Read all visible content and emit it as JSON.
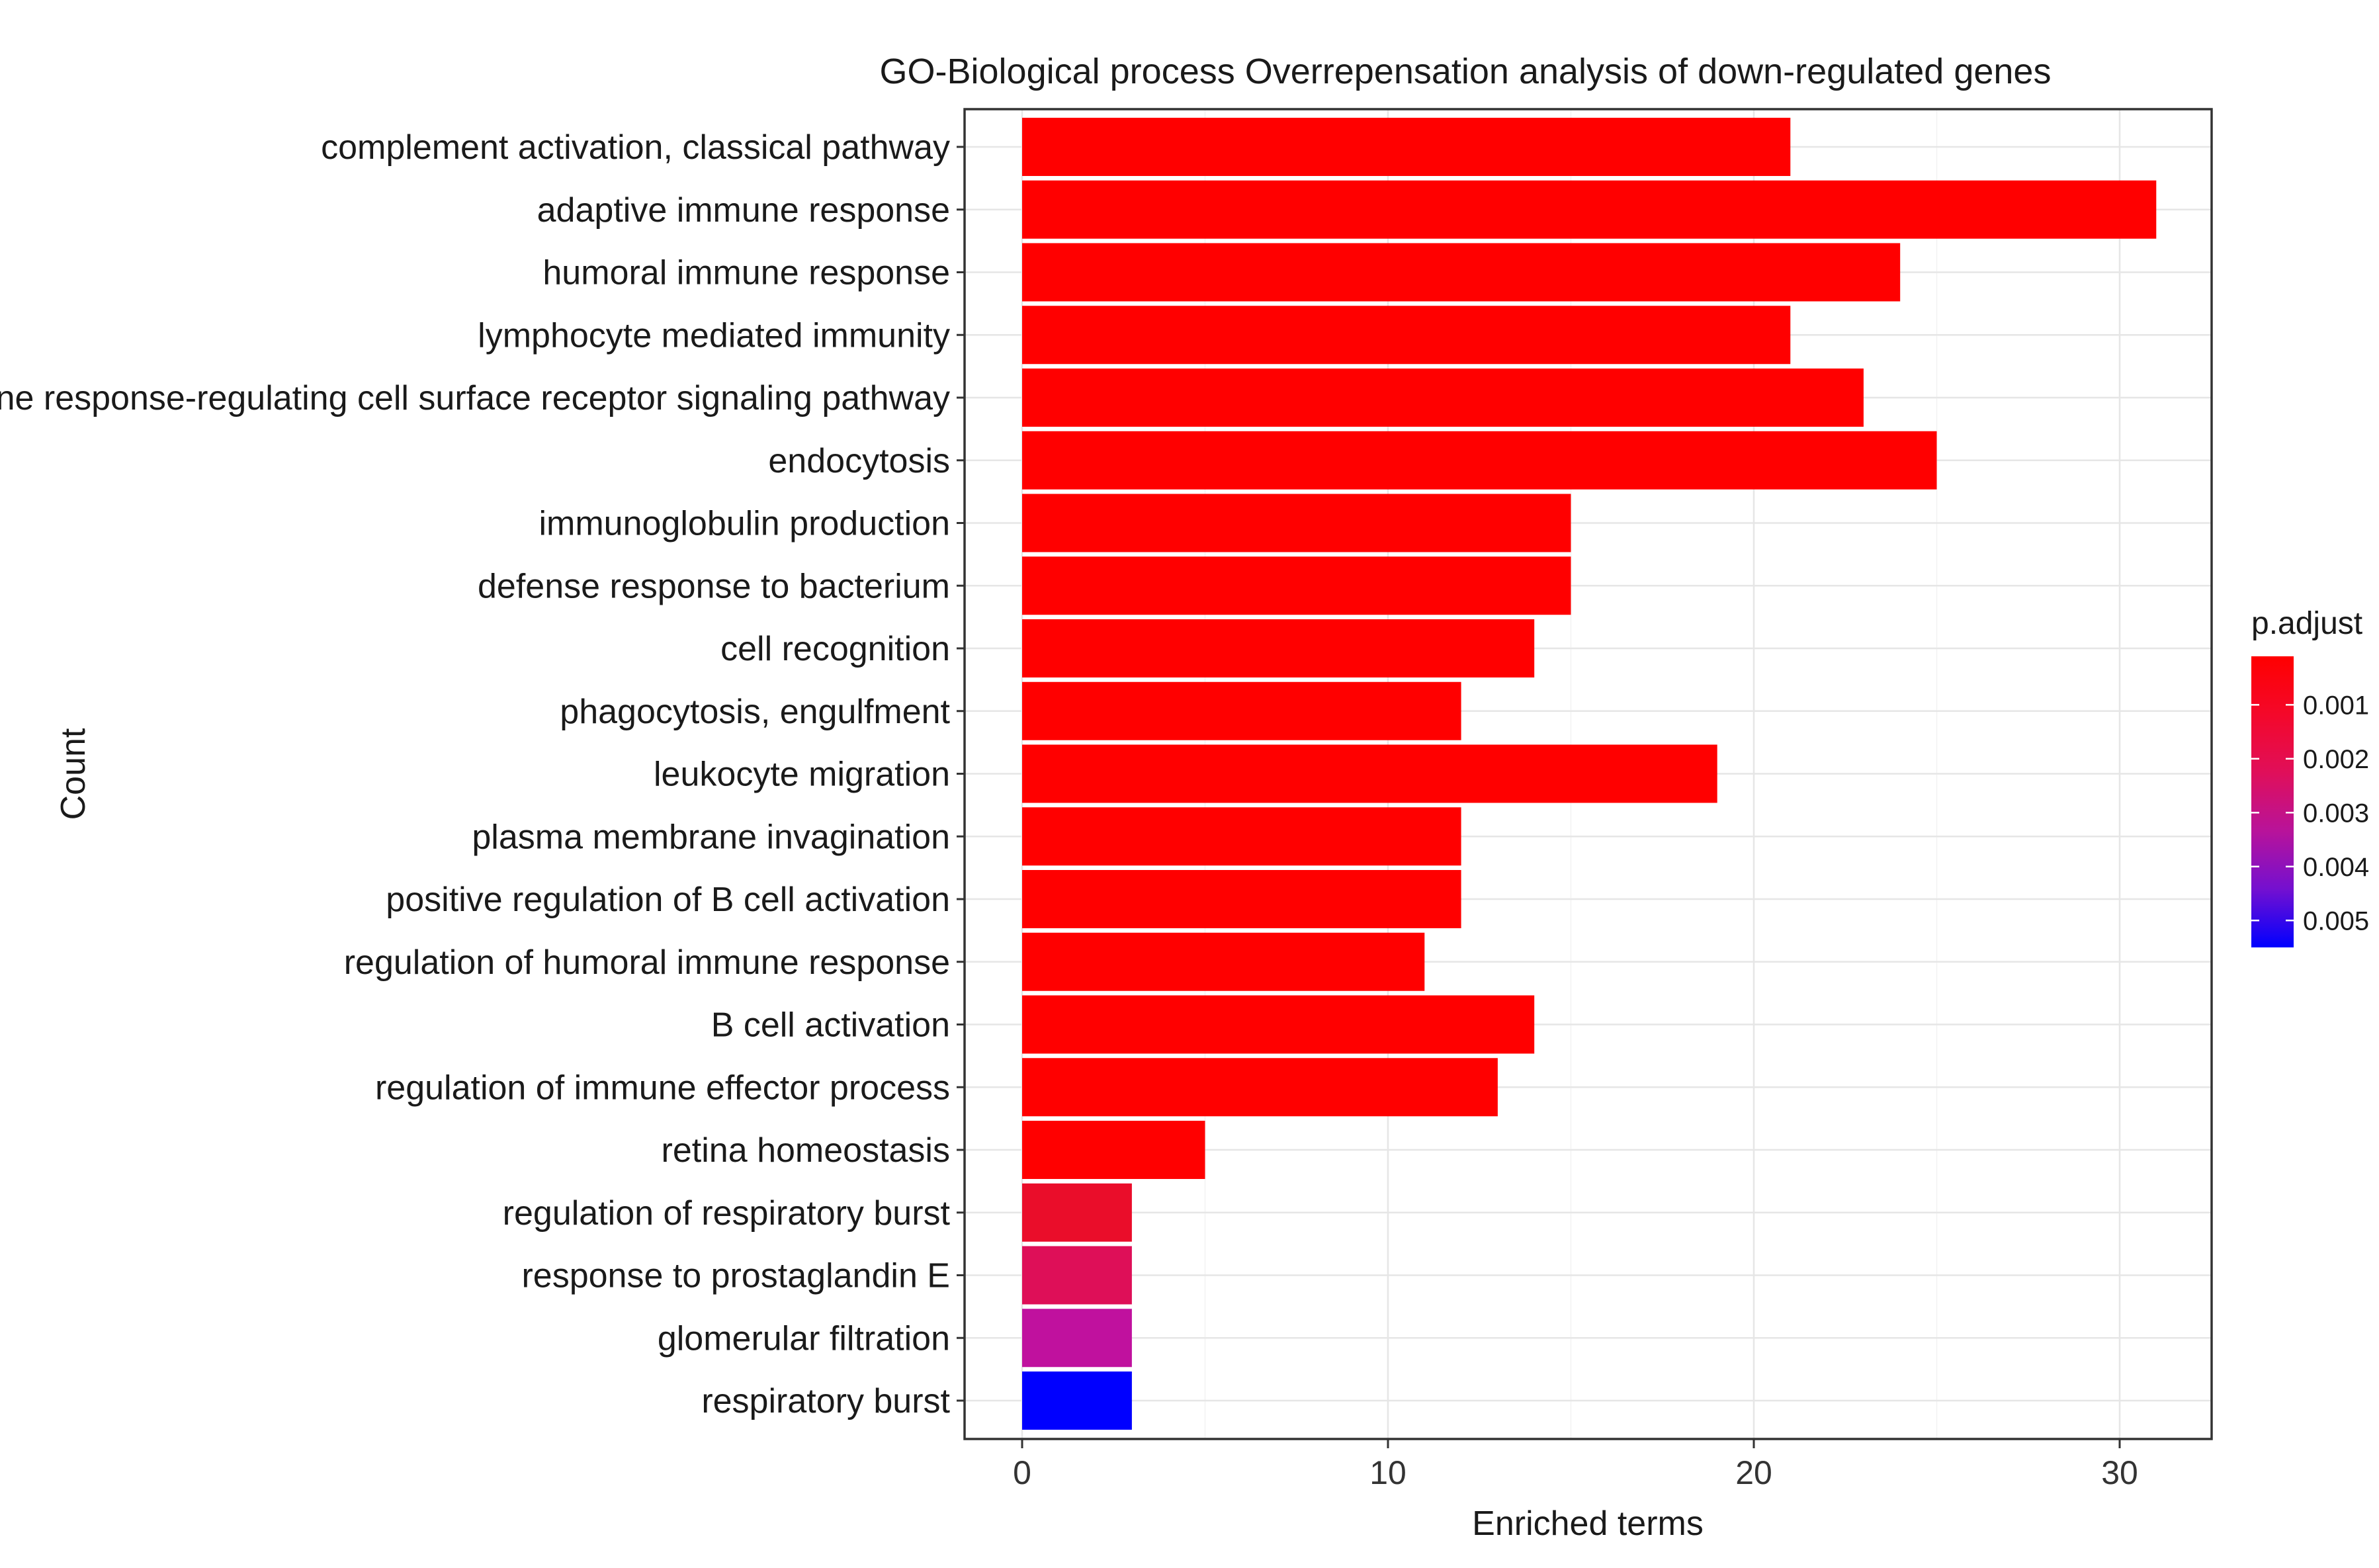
{
  "chart_data": {
    "type": "bar",
    "orientation": "horizontal",
    "title": "GO-Biological process Overrepensation analysis of down-regulated genes",
    "xlabel": "Enriched terms",
    "ylabel": "Count",
    "xlim": [
      0,
      32.5
    ],
    "xticks": [
      0,
      10,
      20,
      30
    ],
    "grid": true,
    "legend": {
      "title": "p.adjust",
      "position": "right",
      "color_low": "#ff0000",
      "color_high": "#0000ff",
      "range": [
        0.0001,
        0.0055
      ],
      "ticks": [
        {
          "value": 0.001,
          "label": "0.001"
        },
        {
          "value": 0.002,
          "label": "0.002"
        },
        {
          "value": 0.003,
          "label": "0.003"
        },
        {
          "value": 0.004,
          "label": "0.004"
        },
        {
          "value": 0.005,
          "label": "0.005"
        }
      ]
    },
    "categories": [
      "complement activation, classical pathway",
      "adaptive immune response",
      "humoral immune response",
      "lymphocyte mediated immunity",
      "immune response-regulating cell surface receptor signaling pathway",
      "endocytosis",
      "immunoglobulin production",
      "defense response to bacterium",
      "cell recognition",
      "phagocytosis, engulfment",
      "leukocyte migration",
      "plasma membrane invagination",
      "positive regulation of B cell activation",
      "regulation of humoral immune response",
      "B cell activation",
      "regulation of immune effector process",
      "retina homeostasis",
      "regulation of respiratory burst",
      "response to prostaglandin E",
      "glomerular filtration",
      "respiratory burst"
    ],
    "values": [
      21,
      31,
      24,
      21,
      23,
      25,
      15,
      15,
      14,
      12,
      19,
      12,
      12,
      11,
      14,
      13,
      5,
      3,
      3,
      3,
      3
    ],
    "p_adjust": [
      0.0001,
      0.0001,
      0.0001,
      0.0001,
      0.0001,
      0.0001,
      0.0001,
      0.0001,
      0.0001,
      0.0001,
      0.0001,
      0.0001,
      0.0001,
      0.0001,
      0.0001,
      0.0001,
      0.0001,
      0.0009,
      0.0016,
      0.0031,
      0.0055
    ],
    "bar_colors": [
      "#ff0000",
      "#ff0000",
      "#ff0000",
      "#ff0000",
      "#ff0000",
      "#ff0000",
      "#ff0000",
      "#ff0000",
      "#ff0000",
      "#ff0000",
      "#ff0000",
      "#ff0000",
      "#ff0000",
      "#ff0000",
      "#ff0000",
      "#ff0000",
      "#ff0000",
      "#ea0d2a",
      "#de0f58",
      "#c0119e",
      "#0000ff"
    ]
  }
}
